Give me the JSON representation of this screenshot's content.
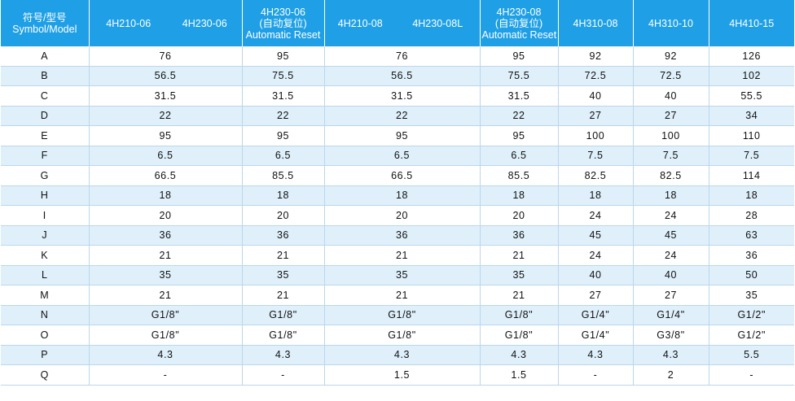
{
  "header": {
    "symbol_line1": "符号/型号",
    "symbol_line2": "Symbol/Model",
    "h1": "4H210-06",
    "h2": "4H230-06",
    "h3_line1": "4H230-06",
    "h3_line2": "(自动复位)",
    "h3_line3": "Automatic Reset",
    "h4": "4H210-08",
    "h5": "4H230-08L",
    "h6_line1": "4H230-08",
    "h6_line2": "(自动复位)",
    "h6_line3": "Automatic Reset",
    "h7": "4H310-08",
    "h8": "4H310-10",
    "h9": "4H410-15"
  },
  "rows": [
    [
      "A",
      "76",
      "95",
      "76",
      "95",
      "92",
      "92",
      "126"
    ],
    [
      "B",
      "56.5",
      "75.5",
      "56.5",
      "75.5",
      "72.5",
      "72.5",
      "102"
    ],
    [
      "C",
      "31.5",
      "31.5",
      "31.5",
      "31.5",
      "40",
      "40",
      "55.5"
    ],
    [
      "D",
      "22",
      "22",
      "22",
      "22",
      "27",
      "27",
      "34"
    ],
    [
      "E",
      "95",
      "95",
      "95",
      "95",
      "100",
      "100",
      "110"
    ],
    [
      "F",
      "6.5",
      "6.5",
      "6.5",
      "6.5",
      "7.5",
      "7.5",
      "7.5"
    ],
    [
      "G",
      "66.5",
      "85.5",
      "66.5",
      "85.5",
      "82.5",
      "82.5",
      "114"
    ],
    [
      "H",
      "18",
      "18",
      "18",
      "18",
      "18",
      "18",
      "18"
    ],
    [
      "I",
      "20",
      "20",
      "20",
      "20",
      "24",
      "24",
      "28"
    ],
    [
      "J",
      "36",
      "36",
      "36",
      "36",
      "45",
      "45",
      "63"
    ],
    [
      "K",
      "21",
      "21",
      "21",
      "21",
      "24",
      "24",
      "36"
    ],
    [
      "L",
      "35",
      "35",
      "35",
      "35",
      "40",
      "40",
      "50"
    ],
    [
      "M",
      "21",
      "21",
      "21",
      "21",
      "27",
      "27",
      "35"
    ],
    [
      "N",
      "G1/8\"",
      "G1/8\"",
      "G1/8\"",
      "G1/8\"",
      "G1/4\"",
      "G1/4\"",
      "G1/2\""
    ],
    [
      "O",
      "G1/8\"",
      "G1/8\"",
      "G1/8\"",
      "G1/8\"",
      "G1/4\"",
      "G3/8\"",
      "G1/2\""
    ],
    [
      "P",
      "4.3",
      "4.3",
      "4.3",
      "4.3",
      "4.3",
      "4.3",
      "5.5"
    ],
    [
      "Q",
      "-",
      "-",
      "1.5",
      "1.5",
      "-",
      "2",
      "-"
    ]
  ],
  "colors": {
    "header_bg": "#1fa0e6",
    "header_text": "#ffffff",
    "stripe_bg": "#dff0fb",
    "grid_line": "#bcd6ea"
  }
}
